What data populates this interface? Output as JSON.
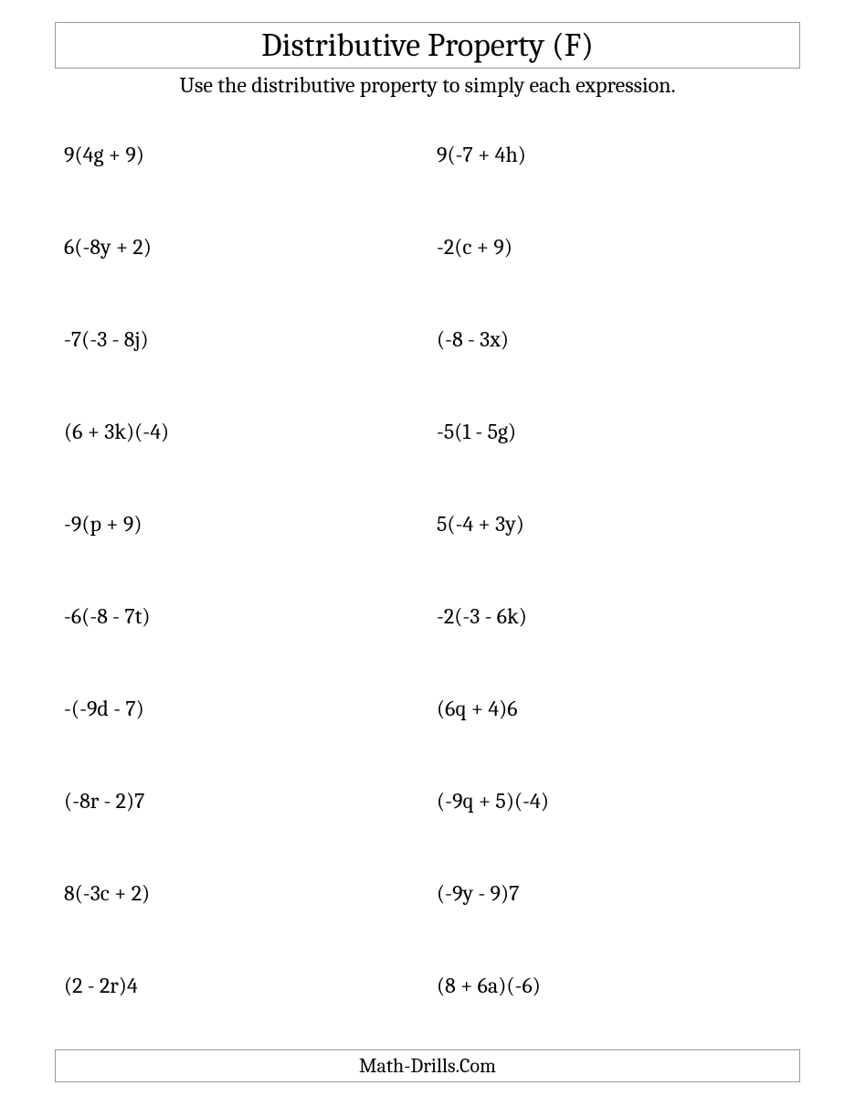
{
  "worksheet": {
    "title": "Distributive Property (F)",
    "instructions": "Use the distributive property to simply each expression.",
    "footer": "Math-Drills.Com",
    "title_fontsize": 36,
    "instructions_fontsize": 24,
    "problem_fontsize": 24,
    "footer_fontsize": 22,
    "border_color": "#999999",
    "text_color": "#000000",
    "background_color": "#ffffff",
    "font_family": "Cambria, Georgia, serif",
    "columns": 2,
    "rows": 10,
    "problems": [
      "9(4g + 9)",
      "9(-7 + 4h)",
      "6(-8y + 2)",
      "-2(c + 9)",
      "-7(-3 - 8j)",
      "(-8 - 3x)",
      "(6 + 3k)(-4)",
      "-5(1 - 5g)",
      "-9(p + 9)",
      "5(-4 + 3y)",
      "-6(-8 - 7t)",
      "-2(-3 - 6k)",
      "-(-9d - 7)",
      "(6q + 4)6",
      "(-8r - 2)7",
      "(-9q + 5)(-4)",
      "8(-3c + 2)",
      "(-9y - 9)7",
      "(2 - 2r)4",
      "(8 + 6a)(-6)"
    ]
  }
}
